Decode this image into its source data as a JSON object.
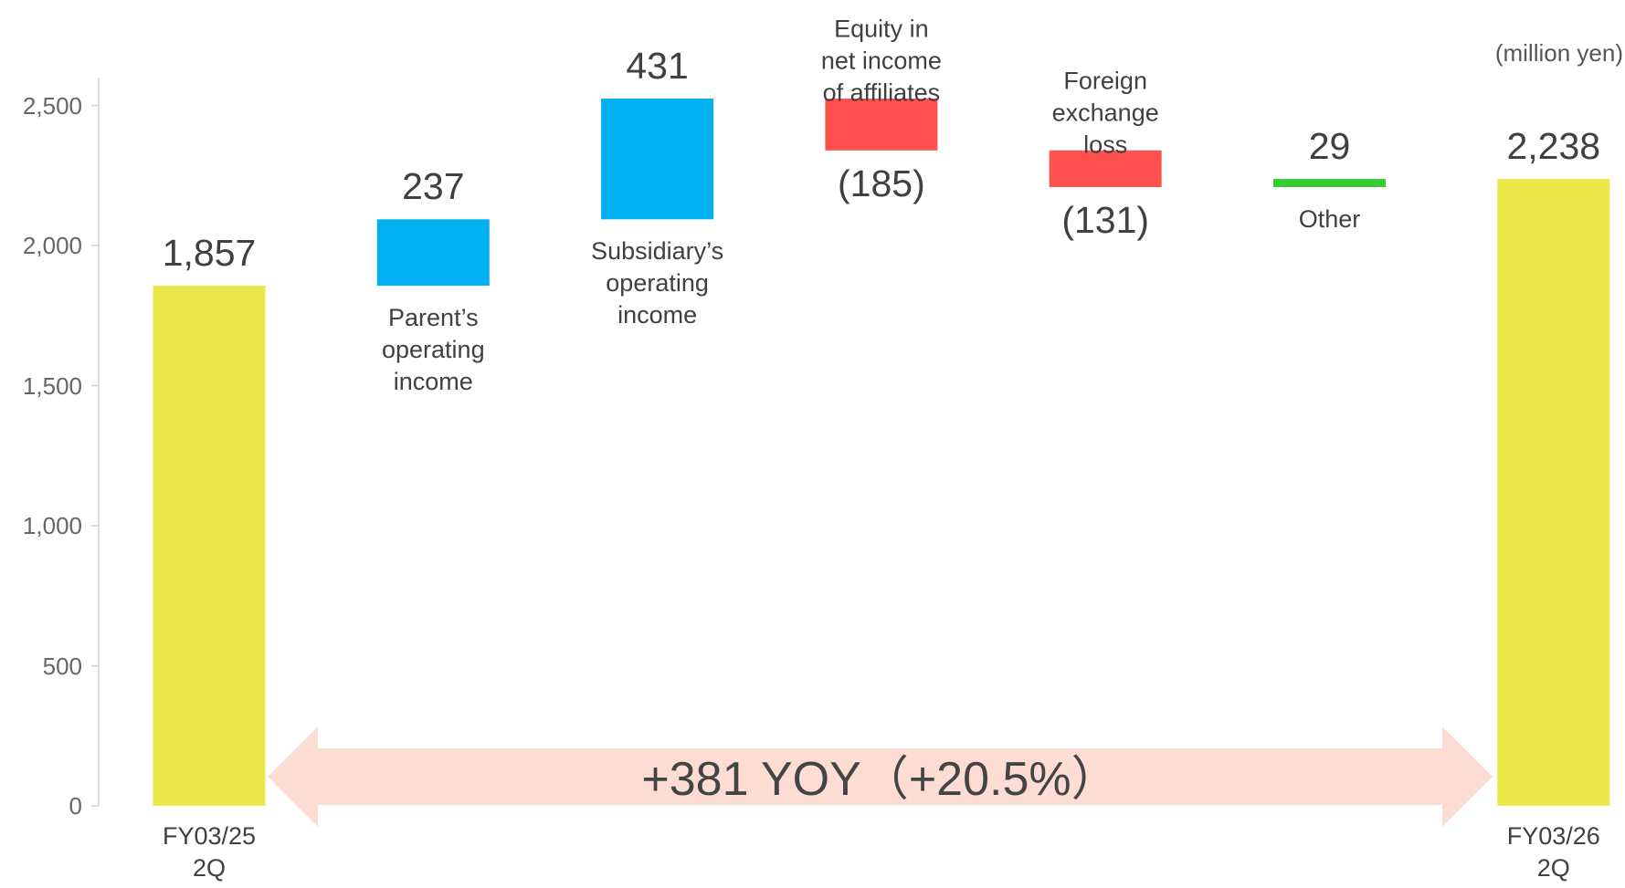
{
  "chart_data": {
    "type": "waterfall",
    "unit_label": "(million yen)",
    "categories": [
      "FY03/25\n2Q",
      "Parent’s\noperating\nincome",
      "Subsidiary’s\noperating\nincome",
      "Equity in\nnet income\nof affiliates",
      "Foreign\nexchange\nloss",
      "Other",
      "FY03/26\n2Q"
    ],
    "values": [
      1857,
      237,
      431,
      -185,
      -131,
      29,
      2238
    ],
    "value_labels": [
      "1,857",
      "237",
      "431",
      "(185)",
      "(131)",
      "29",
      "2,238"
    ],
    "measures": [
      "total",
      "relative",
      "relative",
      "relative",
      "relative",
      "relative",
      "total"
    ],
    "colors": [
      "#ede84a",
      "#00b0f0",
      "#00b0f0",
      "#ff5050",
      "#ff5050",
      "#33cc33",
      "#ede84a"
    ],
    "ylim": [
      0,
      2600
    ],
    "yticks": [
      0,
      500,
      {
        "value": 1000,
        "label": "1,000"
      },
      {
        "value": 1500,
        "label": "1,500"
      },
      {
        "value": 2000,
        "label": "2,000"
      },
      {
        "value": 2500,
        "label": "2,500"
      }
    ],
    "annotation": "+381 YOY（+20.5%）"
  }
}
